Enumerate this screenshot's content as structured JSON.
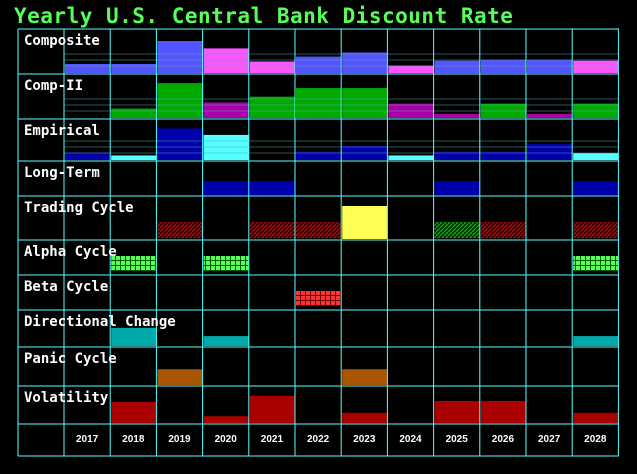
{
  "title": "Yearly U.S. Central Bank Discount Rate",
  "chart_data": {
    "type": "heatmap",
    "title": "Yearly U.S. Central Bank Discount Rate",
    "years": [
      "2017",
      "2018",
      "2019",
      "2020",
      "2021",
      "2022",
      "2023",
      "2024",
      "2025",
      "2026",
      "2027",
      "2028"
    ],
    "rows": [
      {
        "label": "Composite",
        "kind": "bar",
        "baseline": "line",
        "color": "#5555ff",
        "values": [
          0.22,
          0.22,
          0.78,
          0,
          0,
          0.4,
          0.5,
          0,
          0.3,
          0.32,
          0.32,
          0
        ],
        "colors": [
          null,
          null,
          null,
          "#ff55ff",
          "#ff55ff",
          null,
          null,
          "#ff55ff",
          null,
          null,
          null,
          "#ff55ff"
        ],
        "alt": [
          0,
          0,
          0,
          0.6,
          0.28,
          0,
          0,
          0.18,
          0,
          0,
          0,
          0.3
        ]
      },
      {
        "label": "Comp-II",
        "kind": "bar",
        "baseline": "line",
        "color": "#00aa00",
        "values": [
          0,
          0.23,
          0.85,
          0.38,
          0.52,
          0.73,
          0.73,
          0.35,
          0.1,
          0.35,
          0.1,
          0.35
        ],
        "colors": [
          null,
          "#00aa00",
          "#00aa00",
          "#aa00aa",
          "#00aa00",
          "#00aa00",
          "#00aa00",
          "#aa00aa",
          "#aa00aa",
          "#00aa00",
          "#aa00aa",
          "#00aa00"
        ]
      },
      {
        "label": "Empirical",
        "kind": "bar",
        "baseline": "line",
        "color": "#0000aa",
        "values": [
          0.2,
          0.12,
          0.83,
          0.66,
          0,
          0.22,
          0.37,
          0.12,
          0.22,
          0.22,
          0.42,
          0.18
        ],
        "colors": [
          "#0000aa",
          "#55ffff",
          "#0000aa",
          "#55ffff",
          null,
          "#0000aa",
          "#0000aa",
          "#55ffff",
          "#0000aa",
          "#0000aa",
          "#0000aa",
          "#55ffff"
        ]
      },
      {
        "label": "Long-Term",
        "kind": "bar",
        "color": "#0000aa",
        "values": [
          0,
          0,
          0,
          0.45,
          0.45,
          0,
          0,
          0,
          0.45,
          0,
          0,
          0.45
        ]
      },
      {
        "label": "Trading Cycle",
        "kind": "cycle",
        "cells": [
          "",
          "",
          "hatch-red",
          "",
          "hatch-red",
          "hatch-red",
          "solid-yellow",
          "",
          "hatch-green",
          "hatch-red",
          "",
          "hatch-red"
        ]
      },
      {
        "label": "Alpha Cycle",
        "kind": "cycle",
        "cells": [
          "",
          "grid-green",
          "",
          "grid-green",
          "",
          "",
          "",
          "",
          "",
          "",
          "",
          "grid-green"
        ]
      },
      {
        "label": "Beta Cycle",
        "kind": "cycle",
        "cells": [
          "",
          "",
          "",
          "",
          "",
          "grid-red",
          "",
          "",
          "",
          "",
          "",
          ""
        ]
      },
      {
        "label": "Directional Change",
        "kind": "bar",
        "color": "#00aaaa",
        "values": [
          0,
          0.55,
          0,
          0.3,
          0,
          0,
          0,
          0,
          0,
          0,
          0,
          0.3
        ]
      },
      {
        "label": "Panic Cycle",
        "kind": "bar",
        "color": "#aa5500",
        "values": [
          0,
          0,
          0.45,
          0,
          0,
          0,
          0.45,
          0,
          0,
          0,
          0,
          0
        ]
      },
      {
        "label": "Volatility",
        "kind": "bar",
        "color": "#aa0000",
        "values": [
          0,
          0.62,
          0,
          0.2,
          0.8,
          0,
          0.3,
          0,
          0.65,
          0.65,
          0,
          0.3
        ]
      }
    ],
    "grid": true
  }
}
